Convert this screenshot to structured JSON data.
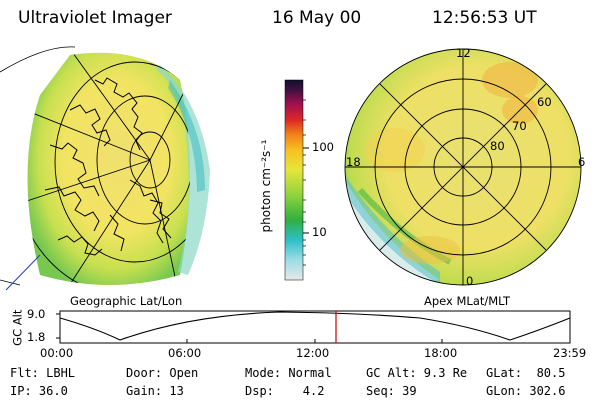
{
  "header": {
    "instrument": "Ultraviolet Imager",
    "date": "16 May 00",
    "time": "12:56:53 UT"
  },
  "colorbar": {
    "unit_label": "photon cm⁻²s⁻¹",
    "ticks": [
      "100",
      "10"
    ]
  },
  "left_panel": {
    "label": "Geographic Lat/Lon"
  },
  "right_panel": {
    "label": "Apex MLat/MLT",
    "mlt_labels": [
      "12",
      "18",
      "6",
      "0"
    ],
    "lat_labels": [
      "60",
      "70",
      "80"
    ]
  },
  "altitude_plot": {
    "ylabel": "GC Alt",
    "yticks": [
      "9.0",
      "1.8"
    ],
    "xticks": [
      "00:00",
      "06:00",
      "12:00",
      "18:00",
      "23:59"
    ],
    "marker_color": "#cc0000"
  },
  "footer": {
    "filter": "Flt: LBHL",
    "ip": "IP: 36.0",
    "door": "Door: Open",
    "gain": "Gain: 13",
    "mode": "Mode: Normal",
    "dsp": "Dsp:    4.2",
    "gc_alt": "GC Alt: 9.3 Re",
    "seq": "Seq: 39",
    "glat": "GLat:  80.5",
    "glon": "GLon: 302.6"
  }
}
